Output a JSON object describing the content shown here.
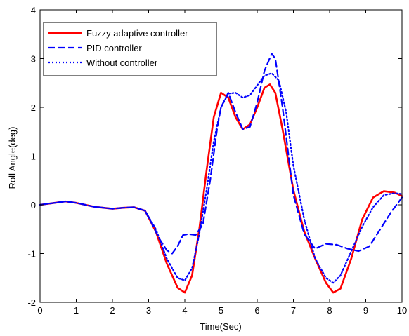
{
  "chart_data": {
    "type": "line",
    "title": "",
    "xlabel": "Time(Sec)",
    "ylabel": "Roll Angle(deg)",
    "xlim": [
      0,
      10
    ],
    "ylim": [
      -2,
      4
    ],
    "xticks": [
      0,
      1,
      2,
      3,
      4,
      5,
      6,
      7,
      8,
      9,
      10
    ],
    "yticks": [
      -2,
      -1,
      0,
      1,
      2,
      3,
      4
    ],
    "grid": false,
    "legend_position": "top-left",
    "series": [
      {
        "name": "Fuzzy adaptive controller",
        "color": "#ff0000",
        "style": "solid",
        "x": [
          0,
          0.3,
          0.7,
          1,
          1.5,
          2,
          2.3,
          2.6,
          2.9,
          3.2,
          3.5,
          3.8,
          4.0,
          4.2,
          4.4,
          4.6,
          4.8,
          5.0,
          5.2,
          5.4,
          5.6,
          5.8,
          6.0,
          6.2,
          6.35,
          6.5,
          6.7,
          7.0,
          7.3,
          7.6,
          7.9,
          8.1,
          8.3,
          8.6,
          8.9,
          9.2,
          9.5,
          9.8,
          10
        ],
        "y": [
          0.0,
          0.03,
          0.07,
          0.04,
          -0.04,
          -0.08,
          -0.06,
          -0.05,
          -0.12,
          -0.55,
          -1.2,
          -1.7,
          -1.8,
          -1.45,
          -0.5,
          0.7,
          1.8,
          2.3,
          2.2,
          1.8,
          1.55,
          1.65,
          2.0,
          2.4,
          2.47,
          2.3,
          1.55,
          0.3,
          -0.55,
          -1.1,
          -1.6,
          -1.8,
          -1.72,
          -1.1,
          -0.3,
          0.15,
          0.28,
          0.25,
          0.18
        ]
      },
      {
        "name": "PID controller",
        "color": "#0000ff",
        "style": "dashed",
        "x": [
          0,
          0.3,
          0.7,
          1,
          1.5,
          2,
          2.3,
          2.6,
          2.9,
          3.1,
          3.3,
          3.5,
          3.65,
          3.8,
          3.95,
          4.1,
          4.3,
          4.5,
          4.7,
          4.9,
          5.0,
          5.2,
          5.4,
          5.6,
          5.8,
          6.0,
          6.2,
          6.4,
          6.5,
          6.7,
          7.0,
          7.3,
          7.6,
          7.9,
          8.2,
          8.5,
          8.8,
          9.1,
          9.4,
          9.7,
          10
        ],
        "y": [
          0.0,
          0.03,
          0.07,
          0.04,
          -0.04,
          -0.08,
          -0.06,
          -0.05,
          -0.12,
          -0.4,
          -0.7,
          -0.93,
          -1.0,
          -0.85,
          -0.62,
          -0.6,
          -0.62,
          -0.4,
          0.5,
          1.6,
          2.0,
          2.3,
          1.9,
          1.55,
          1.6,
          2.1,
          2.75,
          3.1,
          3.0,
          2.0,
          0.2,
          -0.6,
          -0.9,
          -0.8,
          -0.82,
          -0.9,
          -0.95,
          -0.85,
          -0.5,
          -0.15,
          0.15
        ]
      },
      {
        "name": "Without controller",
        "color": "#0000ff",
        "style": "dotted",
        "x": [
          0,
          0.3,
          0.7,
          1,
          1.5,
          2,
          2.3,
          2.6,
          2.9,
          3.2,
          3.5,
          3.8,
          4.0,
          4.2,
          4.4,
          4.6,
          4.8,
          5.0,
          5.2,
          5.4,
          5.6,
          5.8,
          6.0,
          6.2,
          6.4,
          6.6,
          6.8,
          7.0,
          7.3,
          7.6,
          7.9,
          8.1,
          8.3,
          8.6,
          8.9,
          9.2,
          9.5,
          9.8,
          10
        ],
        "y": [
          0.0,
          0.03,
          0.07,
          0.04,
          -0.04,
          -0.08,
          -0.06,
          -0.05,
          -0.12,
          -0.5,
          -1.1,
          -1.5,
          -1.55,
          -1.3,
          -0.6,
          0.3,
          1.3,
          2.0,
          2.28,
          2.3,
          2.2,
          2.25,
          2.45,
          2.65,
          2.7,
          2.55,
          1.9,
          0.8,
          -0.3,
          -1.1,
          -1.5,
          -1.6,
          -1.45,
          -0.95,
          -0.45,
          -0.05,
          0.2,
          0.24,
          0.22
        ]
      }
    ]
  }
}
